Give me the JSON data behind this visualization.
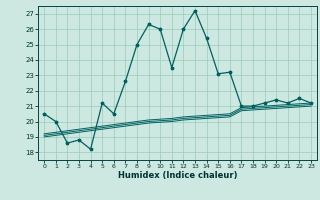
{
  "xlabel": "Humidex (Indice chaleur)",
  "x": [
    0,
    1,
    2,
    3,
    4,
    5,
    6,
    7,
    8,
    9,
    10,
    11,
    12,
    13,
    14,
    15,
    16,
    17,
    18,
    19,
    20,
    21,
    22,
    23
  ],
  "y_main": [
    20.5,
    20.0,
    18.6,
    18.8,
    18.2,
    21.2,
    20.5,
    22.6,
    25.0,
    26.3,
    26.0,
    23.5,
    26.0,
    27.2,
    25.4,
    23.1,
    23.2,
    21.0,
    21.0,
    21.2,
    21.4,
    21.2,
    21.5,
    21.2
  ],
  "y_band1": [
    19.0,
    19.1,
    19.2,
    19.3,
    19.4,
    19.5,
    19.6,
    19.7,
    19.8,
    19.9,
    19.95,
    20.0,
    20.1,
    20.15,
    20.2,
    20.25,
    20.3,
    20.7,
    20.75,
    20.8,
    20.85,
    20.9,
    20.95,
    21.0
  ],
  "y_band2": [
    19.1,
    19.2,
    19.3,
    19.4,
    19.5,
    19.6,
    19.7,
    19.8,
    19.9,
    20.0,
    20.05,
    20.1,
    20.2,
    20.25,
    20.3,
    20.35,
    20.4,
    20.8,
    20.85,
    20.9,
    20.95,
    21.0,
    21.05,
    21.1
  ],
  "y_band3": [
    19.2,
    19.3,
    19.4,
    19.5,
    19.6,
    19.7,
    19.8,
    19.9,
    20.0,
    20.1,
    20.15,
    20.2,
    20.3,
    20.35,
    20.4,
    20.45,
    20.5,
    20.9,
    20.95,
    21.0,
    21.05,
    21.1,
    21.15,
    21.2
  ],
  "line_color": "#006060",
  "bg_color": "#cce8e0",
  "grid_color": "#99ccbb",
  "ylim": [
    17.5,
    27.5
  ],
  "yticks": [
    18,
    19,
    20,
    21,
    22,
    23,
    24,
    25,
    26,
    27
  ],
  "xlim": [
    -0.5,
    23.5
  ],
  "xticks": [
    0,
    1,
    2,
    3,
    4,
    5,
    6,
    7,
    8,
    9,
    10,
    11,
    12,
    13,
    14,
    15,
    16,
    17,
    18,
    19,
    20,
    21,
    22,
    23
  ]
}
